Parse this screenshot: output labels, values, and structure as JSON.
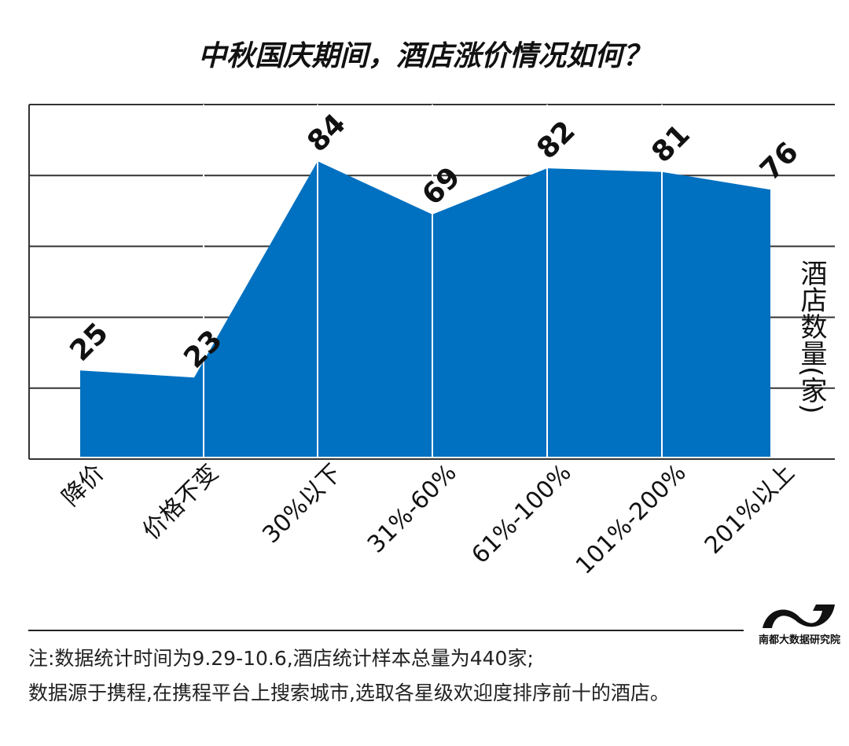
{
  "chart_data": {
    "type": "area",
    "title": "中秋国庆期间，酒店涨价情况如何？",
    "categories": [
      "降价",
      "价格不变",
      "30%以下",
      "31%-60%",
      "61%-100%",
      "101%-200%",
      "201%以上"
    ],
    "values": [
      25,
      23,
      84,
      69,
      82,
      81,
      76
    ],
    "data_labels": [
      "25",
      "23",
      "84",
      "69",
      "82",
      "81",
      "76"
    ],
    "xlabel": "",
    "ylabel": "酒店数量(家)",
    "ylim": [
      0,
      100
    ],
    "grid": true,
    "gridline_step": 20,
    "color": "#0070C0"
  },
  "logo_text": "南都大数据研究院",
  "notes": [
    "注:数据统计时间为9.29-10.6,酒店统计样本总量为440家;",
    "数据源于携程,在携程平台上搜索城市,选取各星级欢迎度排序前十的酒店。"
  ]
}
